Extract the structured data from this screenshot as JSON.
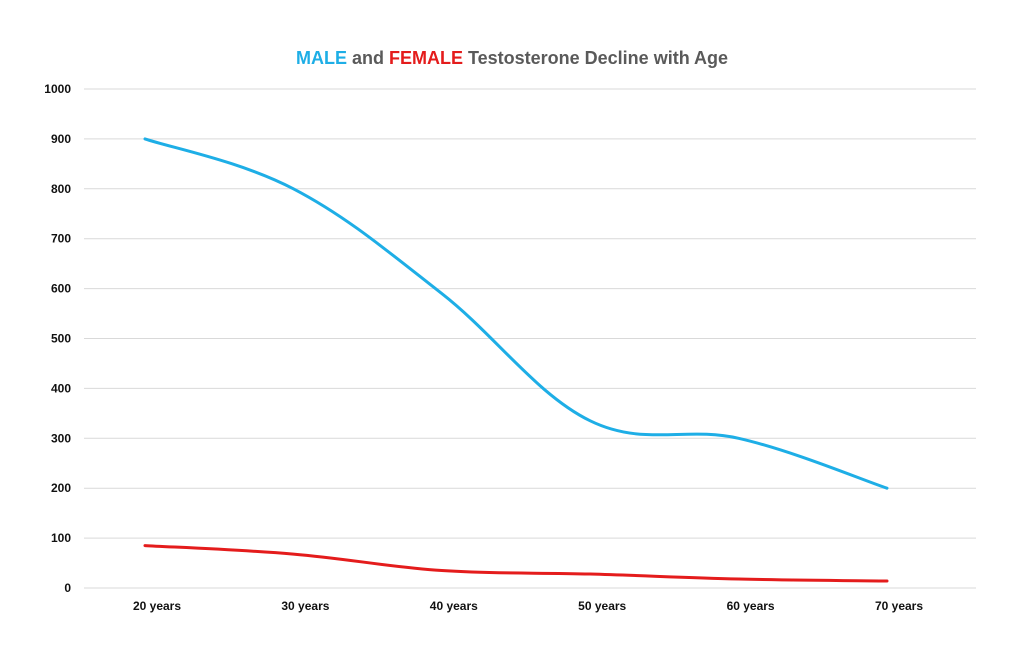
{
  "chart_data": {
    "type": "line",
    "title": {
      "parts": [
        {
          "text": "MALE",
          "color": "#1eaee6"
        },
        {
          "text": " and ",
          "color": "#5a5a5a"
        },
        {
          "text": "FEMALE",
          "color": "#e41c1c"
        },
        {
          "text": " Testosterone Decline with Age",
          "color": "#5a5a5a"
        }
      ]
    },
    "xlabel": "",
    "ylabel": "",
    "categories": [
      "20 years",
      "30 years",
      "40 years",
      "50 years",
      "60 years",
      "70 years"
    ],
    "yticks": [
      0,
      100,
      200,
      300,
      400,
      500,
      600,
      700,
      800,
      900,
      1000
    ],
    "ylim": [
      0,
      1000
    ],
    "grid": true,
    "smooth": true,
    "series": [
      {
        "color": "#1eaee6",
        "values": [
          900,
          800,
          590,
          335,
          300,
          200
        ]
      },
      {
        "color": "#e41c1c",
        "values": [
          85,
          68,
          35,
          28,
          18,
          14
        ]
      }
    ]
  }
}
